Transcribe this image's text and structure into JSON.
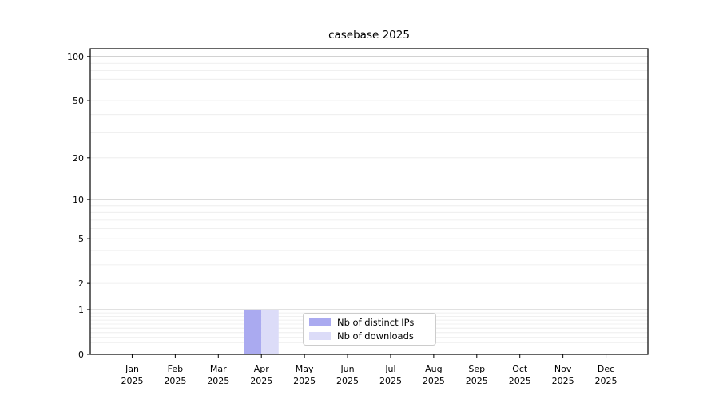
{
  "chart_data": {
    "type": "bar",
    "title": "casebase 2025",
    "year": "2025",
    "categories": [
      "Jan",
      "Feb",
      "Mar",
      "Apr",
      "May",
      "Jun",
      "Jul",
      "Aug",
      "Sep",
      "Oct",
      "Nov",
      "Dec"
    ],
    "series": [
      {
        "name": "Nb of distinct IPs",
        "color": "#aaaaf0",
        "values": [
          0,
          0,
          0,
          1,
          0,
          0,
          0,
          0,
          0,
          0,
          0,
          0
        ]
      },
      {
        "name": "Nb of downloads",
        "color": "#dcdcf8",
        "values": [
          0,
          0,
          0,
          1,
          0,
          0,
          0,
          0,
          0,
          0,
          0,
          0
        ]
      }
    ],
    "yscale": "log1p",
    "ylim": [
      0,
      113
    ],
    "ytick_values": [
      0,
      1,
      2,
      5,
      10,
      20,
      50,
      100
    ],
    "grid": "on",
    "legend_position": "lower center",
    "colors": {
      "axis": "#000000",
      "major_grid": "#c3c3c3",
      "minor_grid": "#ebebeb",
      "background": "#ffffff"
    }
  }
}
